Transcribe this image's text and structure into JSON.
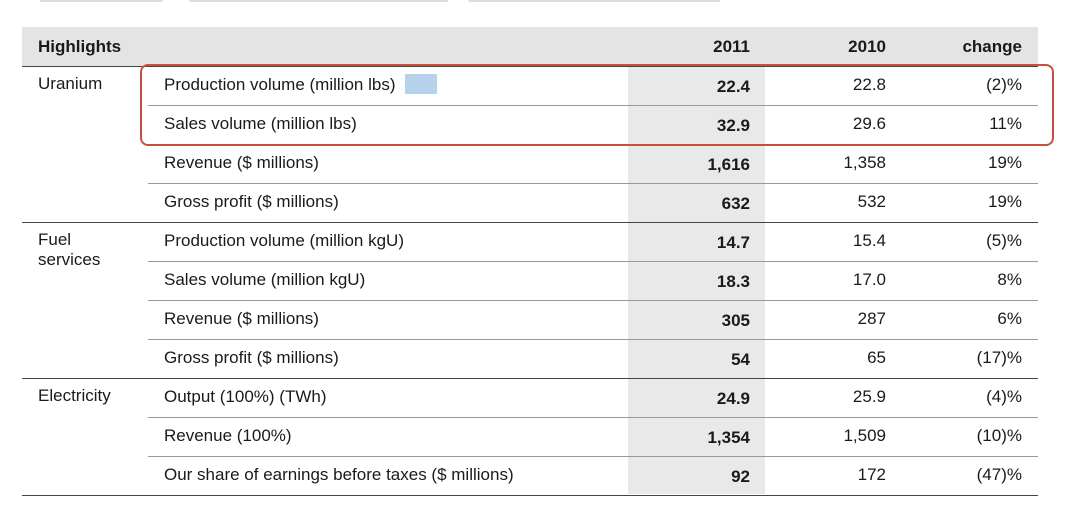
{
  "table": {
    "header": [
      "Highlights",
      "2011",
      "2010",
      "change"
    ],
    "groups": [
      {
        "segment": "Uranium",
        "rows": [
          [
            "Production volume (million lbs)",
            "22.4",
            "22.8",
            "(2)%"
          ],
          [
            "Sales volume (million lbs)",
            "32.9",
            "29.6",
            "11%"
          ],
          [
            "Revenue ($ millions)",
            "1,616",
            "1,358",
            "19%"
          ],
          [
            "Gross profit ($ millions)",
            "632",
            "532",
            "19%"
          ]
        ]
      },
      {
        "segment": "Fuel services",
        "rows": [
          [
            "Production volume (million kgU)",
            "14.7",
            "15.4",
            "(5)%"
          ],
          [
            "Sales volume (million kgU)",
            "18.3",
            "17.0",
            "8%"
          ],
          [
            "Revenue ($ millions)",
            "305",
            "287",
            "6%"
          ],
          [
            "Gross profit ($ millions)",
            "54",
            "65",
            "(17)%"
          ]
        ]
      },
      {
        "segment": "Electricity",
        "rows": [
          [
            "Output (100%) (TWh)",
            "24.9",
            "25.9",
            "(4)%"
          ],
          [
            "Revenue (100%)",
            "1,354",
            "1,509",
            "(10)%"
          ],
          [
            "Our share of earnings before taxes ($ millions)",
            "92",
            "172",
            "(47)%"
          ]
        ]
      }
    ]
  }
}
